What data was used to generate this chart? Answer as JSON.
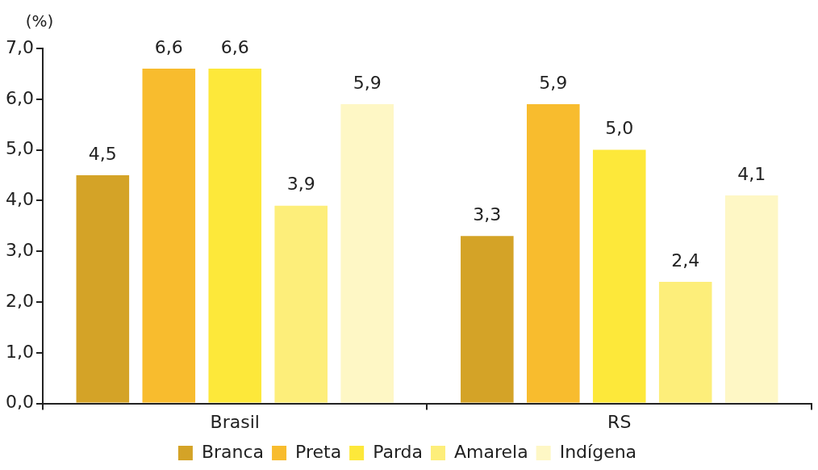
{
  "chart_data": {
    "type": "bar",
    "ylabel": "(%)",
    "categories": [
      "Brasil",
      "RS"
    ],
    "series": [
      {
        "name": "Branca",
        "color": "#d4a327",
        "values": [
          4.5,
          3.3
        ],
        "value_labels": [
          "4,5",
          "3,3"
        ]
      },
      {
        "name": "Preta",
        "color": "#f8bc2e",
        "values": [
          6.6,
          5.9
        ],
        "value_labels": [
          "6,6",
          "5,9"
        ]
      },
      {
        "name": "Parda",
        "color": "#fde83a",
        "values": [
          6.6,
          5.0
        ],
        "value_labels": [
          "6,6",
          "5,0"
        ]
      },
      {
        "name": "Amarela",
        "color": "#fdee7a",
        "values": [
          3.9,
          2.4
        ],
        "value_labels": [
          "3,9",
          "2,4"
        ]
      },
      {
        "name": "Indígena",
        "color": "#fef7c5",
        "values": [
          5.9,
          4.1
        ],
        "value_labels": [
          "5,9",
          "4,1"
        ]
      }
    ],
    "ylim": [
      0,
      7
    ],
    "yticks": [
      {
        "value": 0,
        "label": "0,0"
      },
      {
        "value": 1,
        "label": "1,0"
      },
      {
        "value": 2,
        "label": "2,0"
      },
      {
        "value": 3,
        "label": "3,0"
      },
      {
        "value": 4,
        "label": "4,0"
      },
      {
        "value": 5,
        "label": "5,0"
      },
      {
        "value": 6,
        "label": "6,0"
      },
      {
        "value": 7,
        "label": "7,0"
      }
    ],
    "grid": false,
    "legend": "bottom"
  }
}
